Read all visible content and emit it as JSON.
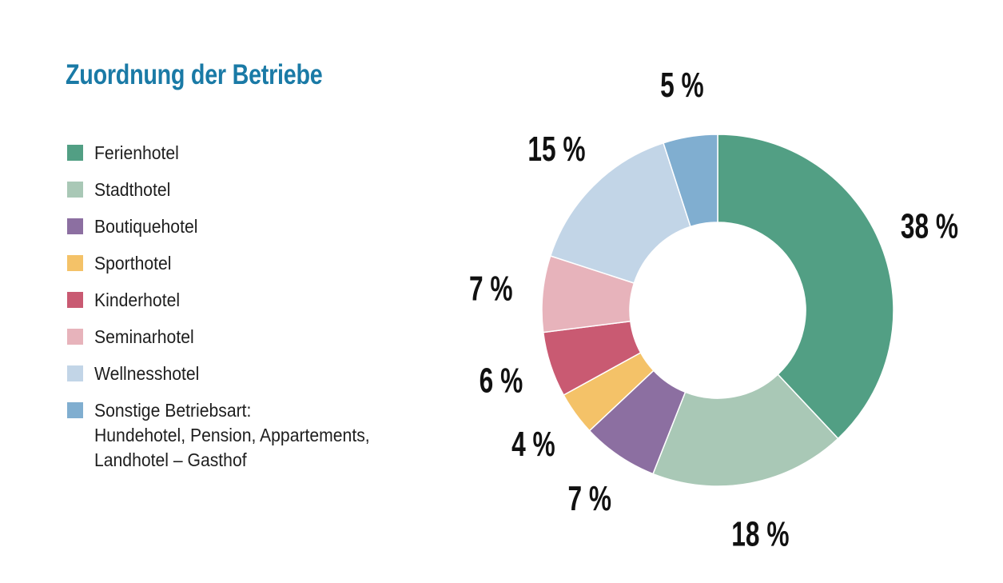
{
  "title": "Zuordnung der Betriebe",
  "legend": [
    {
      "label": "Ferienhotel",
      "color": "#529f84"
    },
    {
      "label": "Stadthotel",
      "color": "#a9c8b6"
    },
    {
      "label": "Boutiquehotel",
      "color": "#8c6fa1"
    },
    {
      "label": "Sporthotel",
      "color": "#f4c268"
    },
    {
      "label": "Kinderhotel",
      "color": "#c95a72"
    },
    {
      "label": "Seminarhotel",
      "color": "#e7b3bb"
    },
    {
      "label": "Wellnesshotel",
      "color": "#c2d5e7"
    },
    {
      "label": "Sonstige Betriebsart:\nHundehotel, Pension, Appartements,\nLandhotel – Gasthof",
      "color": "#80aed0"
    }
  ],
  "chart_data": {
    "type": "pie",
    "title": "Zuordnung der Betriebe",
    "donut": true,
    "categories": [
      "Ferienhotel",
      "Stadthotel",
      "Boutiquehotel",
      "Sporthotel",
      "Kinderhotel",
      "Seminarhotel",
      "Wellnesshotel",
      "Sonstige Betriebsart: Hundehotel, Pension, Appartements, Landhotel – Gasthof"
    ],
    "values": [
      38,
      18,
      7,
      4,
      6,
      7,
      15,
      5
    ],
    "labels": [
      "38 %",
      "18 %",
      "7 %",
      "4 %",
      "6 %",
      "7 %",
      "15 %",
      "5 %"
    ],
    "colors": [
      "#529f84",
      "#a9c8b6",
      "#8c6fa1",
      "#f4c268",
      "#c95a72",
      "#e7b3bb",
      "#c2d5e7",
      "#80aed0"
    ],
    "legend_position": "left"
  }
}
